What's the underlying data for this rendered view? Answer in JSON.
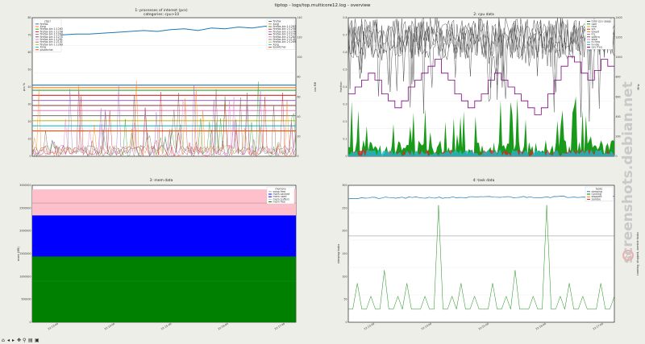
{
  "window": {
    "title": "tiptop - logs/top.multicore12.log - overview"
  },
  "watermark": {
    "text": "screenshots.debian.net"
  },
  "toolbar": {
    "buttons": [
      "home",
      "back",
      "forward",
      "pan",
      "zoom",
      "configure",
      "save"
    ]
  },
  "colors": {
    "bg": "#eeeee8",
    "pink": "#ffc0cb",
    "blue": "#0000ff",
    "green": "#008000",
    "purple": "#800080",
    "steel": "#1f77b4"
  },
  "chart_data": [
    {
      "type": "line",
      "title": "1: processes of interest (pcs)",
      "subtitle": "categories: cpu>10",
      "legend_title": "ctgcr",
      "legend_left": [
        "firefox",
        "Xorg",
        "firefox-bin 1:1263",
        "firefox-bin 1:1258",
        "firefox-bin 1:1267",
        "firefox-bin 1:1270",
        "firefox-bin 1:1281",
        "firefox-bin 1:2141",
        "firefox-bin 1:1269",
        "Xorg",
        "ipswitcher"
      ],
      "legend_right": [
        "firefox",
        "Xorg",
        "firefox-bin 1:1263",
        "firefox-bin 2:1258",
        "firefox-bin 2:1276",
        "firefox-bin 2:1270",
        "firefox-bin 2:1281",
        "firefox-bin 2:2141",
        "firefox-bin 2:1269",
        "Xorg",
        "ipswitcher"
      ],
      "ylabel_left": "pcs %",
      "ylabel_right": "vss MB",
      "yticks_left": [
        "0",
        "10",
        "20",
        "30",
        "40",
        "50",
        "60",
        "70",
        "80"
      ],
      "yticks_right": [
        "0",
        "20",
        "40",
        "60",
        "80",
        "100",
        "120",
        "140"
      ],
      "series_colors": [
        "#1f77b4",
        "#ff7f0e",
        "#2ca02c",
        "#d62728",
        "#9467bd",
        "#8c564b",
        "#e377c2",
        "#7f7f7f",
        "#bcbd22",
        "#17becf",
        "#ff4500"
      ],
      "top_series": [
        104,
        104,
        105,
        106,
        106,
        107,
        108,
        109,
        110,
        109,
        111,
        112,
        110,
        113,
        112,
        114,
        113,
        115,
        112,
        116
      ],
      "flat_levels": [
        28,
        27,
        26,
        24,
        22,
        20,
        18,
        16,
        14,
        12,
        10
      ],
      "spike_series": [
        2,
        5,
        40,
        3,
        8,
        55,
        2,
        4,
        60,
        3,
        12,
        30,
        2,
        6,
        45,
        3,
        9,
        20,
        2,
        5,
        52,
        3,
        8,
        35,
        2,
        7,
        44,
        3,
        10,
        25,
        2,
        4,
        58,
        3,
        6,
        38,
        2,
        5,
        49,
        3
      ]
    },
    {
      "type": "area",
      "title": "2: cpu data",
      "legend": [
        "total cpu usage",
        "user",
        "nice",
        "sys",
        "iowait",
        "irq",
        "softirq",
        "steal",
        "hi-freq",
        "hi-idle",
        "cpu freq"
      ],
      "ylabel_left": "fraction",
      "ylabel_right": "MHz",
      "yticks_left": [
        "0",
        "0.1",
        "0.2",
        "0.3",
        "0.4",
        "0.5",
        "0.6",
        "0.7",
        "0.8"
      ],
      "yticks_right": [
        "0",
        "200",
        "400",
        "600",
        "800",
        "1000",
        "1200",
        "1400"
      ],
      "freq_steps": [
        0.45,
        0.5,
        0.55,
        0.6,
        0.55,
        0.45,
        0.4,
        0.35,
        0.4,
        0.5,
        0.55,
        0.6,
        0.65,
        0.7,
        0.6,
        0.55,
        0.45,
        0.4,
        0.35,
        0.4,
        0.45,
        0.55,
        0.6,
        0.55,
        0.5,
        0.45,
        0.4,
        0.35,
        0.3,
        0.35,
        0.45,
        0.55,
        0.65,
        0.72,
        0.68,
        0.6,
        0.55,
        0.62,
        0.7,
        0.65
      ]
    },
    {
      "type": "area",
      "title": "3: mem data",
      "legend_title": "memory",
      "legend": [
        "swap free",
        "mem cached",
        "mem used",
        "mem buffers",
        "mem free"
      ],
      "legend_colors": [
        "#aaaaaa",
        "#0000ff",
        "#0000ff",
        "#c0c0c0",
        "#008000"
      ],
      "ylabel_left": "mem (MB)",
      "yticks_left": [
        "0",
        "500000",
        "1000000",
        "1500000",
        "2000000",
        "2500000",
        "3000000"
      ],
      "xticks": [
        "22:13:00",
        "22:14:00",
        "22:15:00",
        "22:16:00",
        "22:17:00"
      ],
      "bands_fraction": {
        "green_top": 0.48,
        "blue_top": 0.78,
        "swap_line": 0.87,
        "pink_top": 1.0
      }
    },
    {
      "type": "line",
      "title": "4: task data",
      "legend_title": "tasks",
      "legend": [
        "sleeping",
        "running",
        "stopped",
        "zombie"
      ],
      "legend_colors": [
        "#1f77b4",
        "#008000",
        "#ff7f0e",
        "#d62728"
      ],
      "ylabel_left": "sleeping tasks",
      "ylabel_right": "running, stopped, zombie tasks",
      "yticks_left": [
        "0",
        "50",
        "100",
        "150",
        "200",
        "250",
        "300"
      ],
      "xticks": [
        "22:13:00",
        "22:14:00",
        "22:15:00",
        "22:16:00",
        "22:17:00"
      ],
      "sleeping_level": 290,
      "running_series": [
        1,
        1,
        3,
        1,
        1,
        2,
        1,
        1,
        4,
        1,
        1,
        2,
        1,
        3,
        1,
        1,
        1,
        2,
        1,
        1,
        9,
        1,
        1,
        2,
        1,
        3,
        1,
        1,
        2,
        1,
        1,
        1,
        3,
        1,
        1,
        2,
        1,
        4,
        1,
        1,
        1,
        2,
        1,
        1,
        9,
        1,
        1,
        2,
        1,
        3,
        1,
        1,
        2,
        1,
        1,
        1,
        3,
        1,
        1,
        2
      ]
    }
  ]
}
